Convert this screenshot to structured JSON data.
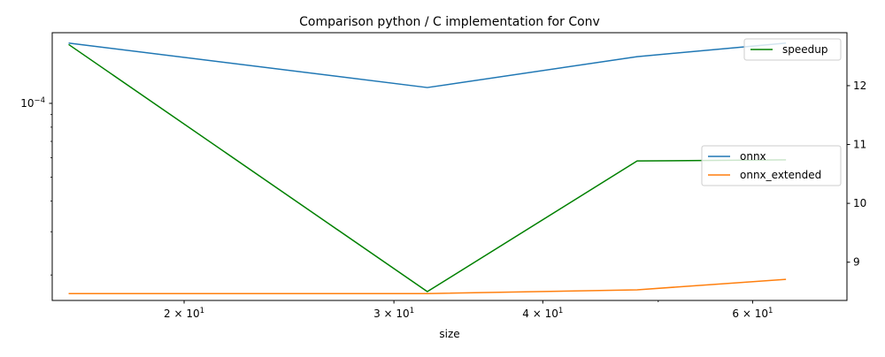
{
  "chart_data": {
    "type": "line",
    "title": "Comparison python / C implementation for Conv",
    "xlabel": "size",
    "ylabel": "",
    "x_scale": "log",
    "y_scale": "log",
    "xlim": [
      15.5,
      72
    ],
    "ylim": [
      1.575e-05,
      0.000194
    ],
    "y2lim": [
      8.35,
      12.9
    ],
    "x": [
      16,
      32,
      48,
      64
    ],
    "x_ticks": [
      {
        "value": 20,
        "base": "2 × 10",
        "exp": "1"
      },
      {
        "value": 30,
        "base": "3 × 10",
        "exp": "1"
      },
      {
        "value": 40,
        "base": "4 × 10",
        "exp": "1"
      },
      {
        "value": 60,
        "base": "6 × 10",
        "exp": "1"
      }
    ],
    "x_minor_ticks": [
      50
    ],
    "y_ticks": [
      {
        "value": 0.0001,
        "base": "10",
        "exp": "−4"
      }
    ],
    "y_minor_ticks": [
      2e-05,
      3e-05,
      4e-05,
      5e-05,
      6e-05,
      7e-05,
      8e-05,
      9e-05
    ],
    "y2_ticks": [
      9,
      10,
      11,
      12
    ],
    "series": [
      {
        "name": "onnx",
        "axis": "left",
        "color": "#1f77b4",
        "values": [
          0.000176,
          0.000116,
          0.000155,
          0.000176
        ]
      },
      {
        "name": "onnx_extended",
        "axis": "left",
        "color": "#ff7f0e",
        "values": [
          1.68e-05,
          1.68e-05,
          1.74e-05,
          1.92e-05
        ]
      },
      {
        "name": "speedup",
        "axis": "right",
        "color": "#008000",
        "values": [
          12.7,
          8.5,
          10.72,
          10.74
        ]
      }
    ],
    "legend_left": {
      "placement": "center-right",
      "entries": [
        "onnx",
        "onnx_extended"
      ]
    },
    "legend_right": {
      "placement": "upper-right",
      "entries": [
        "speedup"
      ]
    },
    "grid": false
  }
}
